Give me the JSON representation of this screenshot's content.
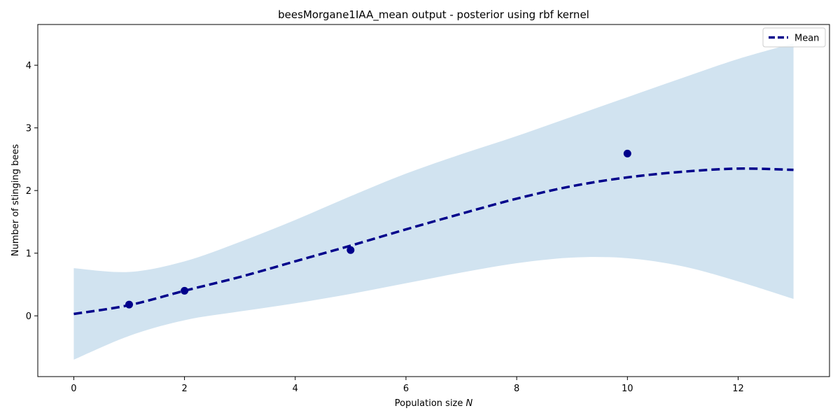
{
  "chart_data": {
    "type": "line",
    "title": "beesMorgane1IAA_mean output - posterior using rbf kernel",
    "xlabel": "Population size N",
    "ylabel": "Number of stinging bees",
    "xlim": [
      -0.65,
      13.65
    ],
    "ylim": [
      -0.97,
      4.65
    ],
    "xticks": [
      0,
      2,
      4,
      6,
      8,
      10,
      12
    ],
    "yticks": [
      0,
      1,
      2,
      3,
      4
    ],
    "grid": false,
    "legend_position": "upper-right",
    "colors": {
      "mean": "#00008b",
      "band": "#d1e3f0",
      "points": "#00008b"
    },
    "series": [
      {
        "name": "Mean",
        "style": "dashed",
        "x": [
          0,
          1,
          2,
          3,
          4,
          5,
          6,
          7,
          8,
          9,
          10,
          11,
          12,
          13
        ],
        "y": [
          0.03,
          0.17,
          0.4,
          0.62,
          0.87,
          1.12,
          1.38,
          1.63,
          1.87,
          2.07,
          2.21,
          2.3,
          2.35,
          2.33
        ]
      }
    ],
    "confidence_band": {
      "x": [
        0,
        1,
        2,
        3,
        4,
        5,
        6,
        7,
        8,
        9,
        10,
        11,
        12,
        13
      ],
      "lower": [
        -0.7,
        -0.32,
        -0.07,
        0.07,
        0.2,
        0.35,
        0.52,
        0.69,
        0.84,
        0.93,
        0.92,
        0.79,
        0.55,
        0.27
      ],
      "upper": [
        0.76,
        0.7,
        0.87,
        1.18,
        1.53,
        1.91,
        2.27,
        2.58,
        2.87,
        3.18,
        3.49,
        3.8,
        4.1,
        4.35
      ]
    },
    "points": {
      "x": [
        1,
        2,
        5,
        10
      ],
      "y": [
        0.18,
        0.4,
        1.05,
        2.59
      ]
    }
  }
}
